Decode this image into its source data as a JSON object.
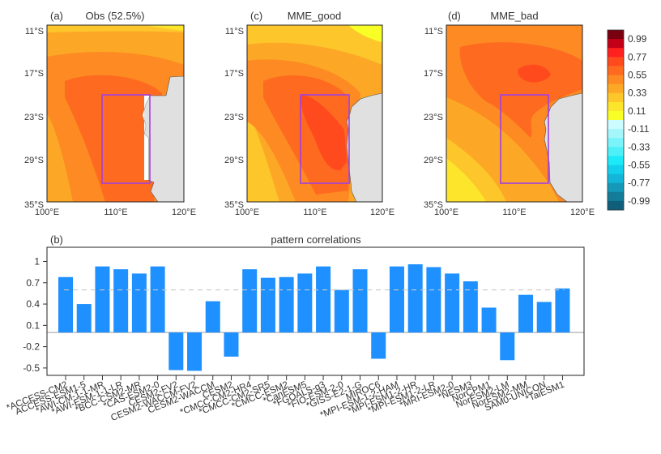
{
  "figure": {
    "colorbar": {
      "ticks": [
        "0.99",
        "0.77",
        "0.55",
        "0.33",
        "0.11",
        "-0.11",
        "-0.33",
        "-0.55",
        "-0.77",
        "-0.99"
      ],
      "colors": [
        "#7a0010",
        "#c40018",
        "#ff2020",
        "#ff4a1e",
        "#fe6a1f",
        "#fd8a22",
        "#fca826",
        "#fdc62b",
        "#fde52c",
        "#f8ff26",
        "#ccfcff",
        "#a4f6fb",
        "#7af3fa",
        "#4ef0f8",
        "#1ceaf8",
        "#12d0ec",
        "#13b6d8",
        "#1499b9",
        "#137c99",
        "#0f5f7c"
      ]
    },
    "maps": [
      {
        "panel": "(a)",
        "title": "Obs (52.5%)",
        "yticks": [
          "11°S",
          "17°S",
          "23°S",
          "29°S",
          "35°S"
        ],
        "xticks": [
          "100°E",
          "110°E",
          "120°E"
        ],
        "box": {
          "lon": [
            108,
            115
          ],
          "lat": [
            -20,
            -32
          ]
        }
      },
      {
        "panel": "(c)",
        "title": "MME_good",
        "yticks": [
          "11°S",
          "17°S",
          "23°S",
          "29°S",
          "35°S"
        ],
        "xticks": [
          "100°E",
          "110°E",
          "120°E"
        ],
        "box": {
          "lon": [
            108,
            115
          ],
          "lat": [
            -20,
            -32
          ]
        }
      },
      {
        "panel": "(d)",
        "title": "MME_bad",
        "yticks": [
          "11°S",
          "17°S",
          "23°S",
          "29°S",
          "35°S"
        ],
        "xticks": [
          "100°E",
          "110°E",
          "120°E"
        ],
        "box": {
          "lon": [
            108,
            115
          ],
          "lat": [
            -20,
            -32
          ]
        }
      }
    ],
    "box_color": "#a040e0",
    "land_color": "#e0e0e0"
  },
  "chart_data": {
    "type": "bar",
    "panel": "(b)",
    "title": "pattern correlations",
    "xlabel": "",
    "ylabel": "",
    "ylim": [
      -0.58,
      1.25
    ],
    "yticks": [
      1,
      0.7,
      0.4,
      0.1,
      -0.2,
      -0.5
    ],
    "ytick_labels": [
      "1",
      "0.7",
      "0.4",
      "0.1",
      "-0.2",
      "-0.5"
    ],
    "threshold_line": 0.6,
    "bar_color": "#1e90ff",
    "grid": false,
    "categories": [
      "*ACCESS-CM2",
      "ACCESS-ESM1-5",
      "*AWI-CM-1-1-MR",
      "*AWI-ESM-1-1-LR",
      "*BCC-CSM2-MR",
      "*CAS-ESM2-0",
      "CESM2-FV2",
      "CESM2-WACCM-FV2",
      "CESM2-WACCM",
      "CESM2",
      "*CMCC-CM2-HR4",
      "*CMCC-CM2-SR5",
      "*CMCC-ESM2",
      "*CanESM5",
      "*FGOALS-g3",
      "*FIO-ESM-2-0",
      "*GISS-E2-1-G",
      "MIROC6",
      "*MPI-ESM-1-2-HAM",
      "*MPI-ESM1-2-HR",
      "*MPI-ESM1-2-LR",
      "*MRI-ESM2-0",
      "*NESM3",
      "NorCPM1",
      "NorESM2-LM",
      "NorESM2-MM",
      "SAM0-UNICON",
      "*TaiESM1"
    ],
    "values": [
      0.78,
      0.4,
      0.93,
      0.89,
      0.83,
      0.93,
      -0.53,
      -0.54,
      0.44,
      -0.34,
      0.89,
      0.77,
      0.78,
      0.83,
      0.93,
      0.6,
      0.89,
      -0.37,
      0.93,
      0.96,
      0.92,
      0.83,
      0.72,
      0.35,
      -0.39,
      0.53,
      0.43,
      0.62
    ]
  }
}
